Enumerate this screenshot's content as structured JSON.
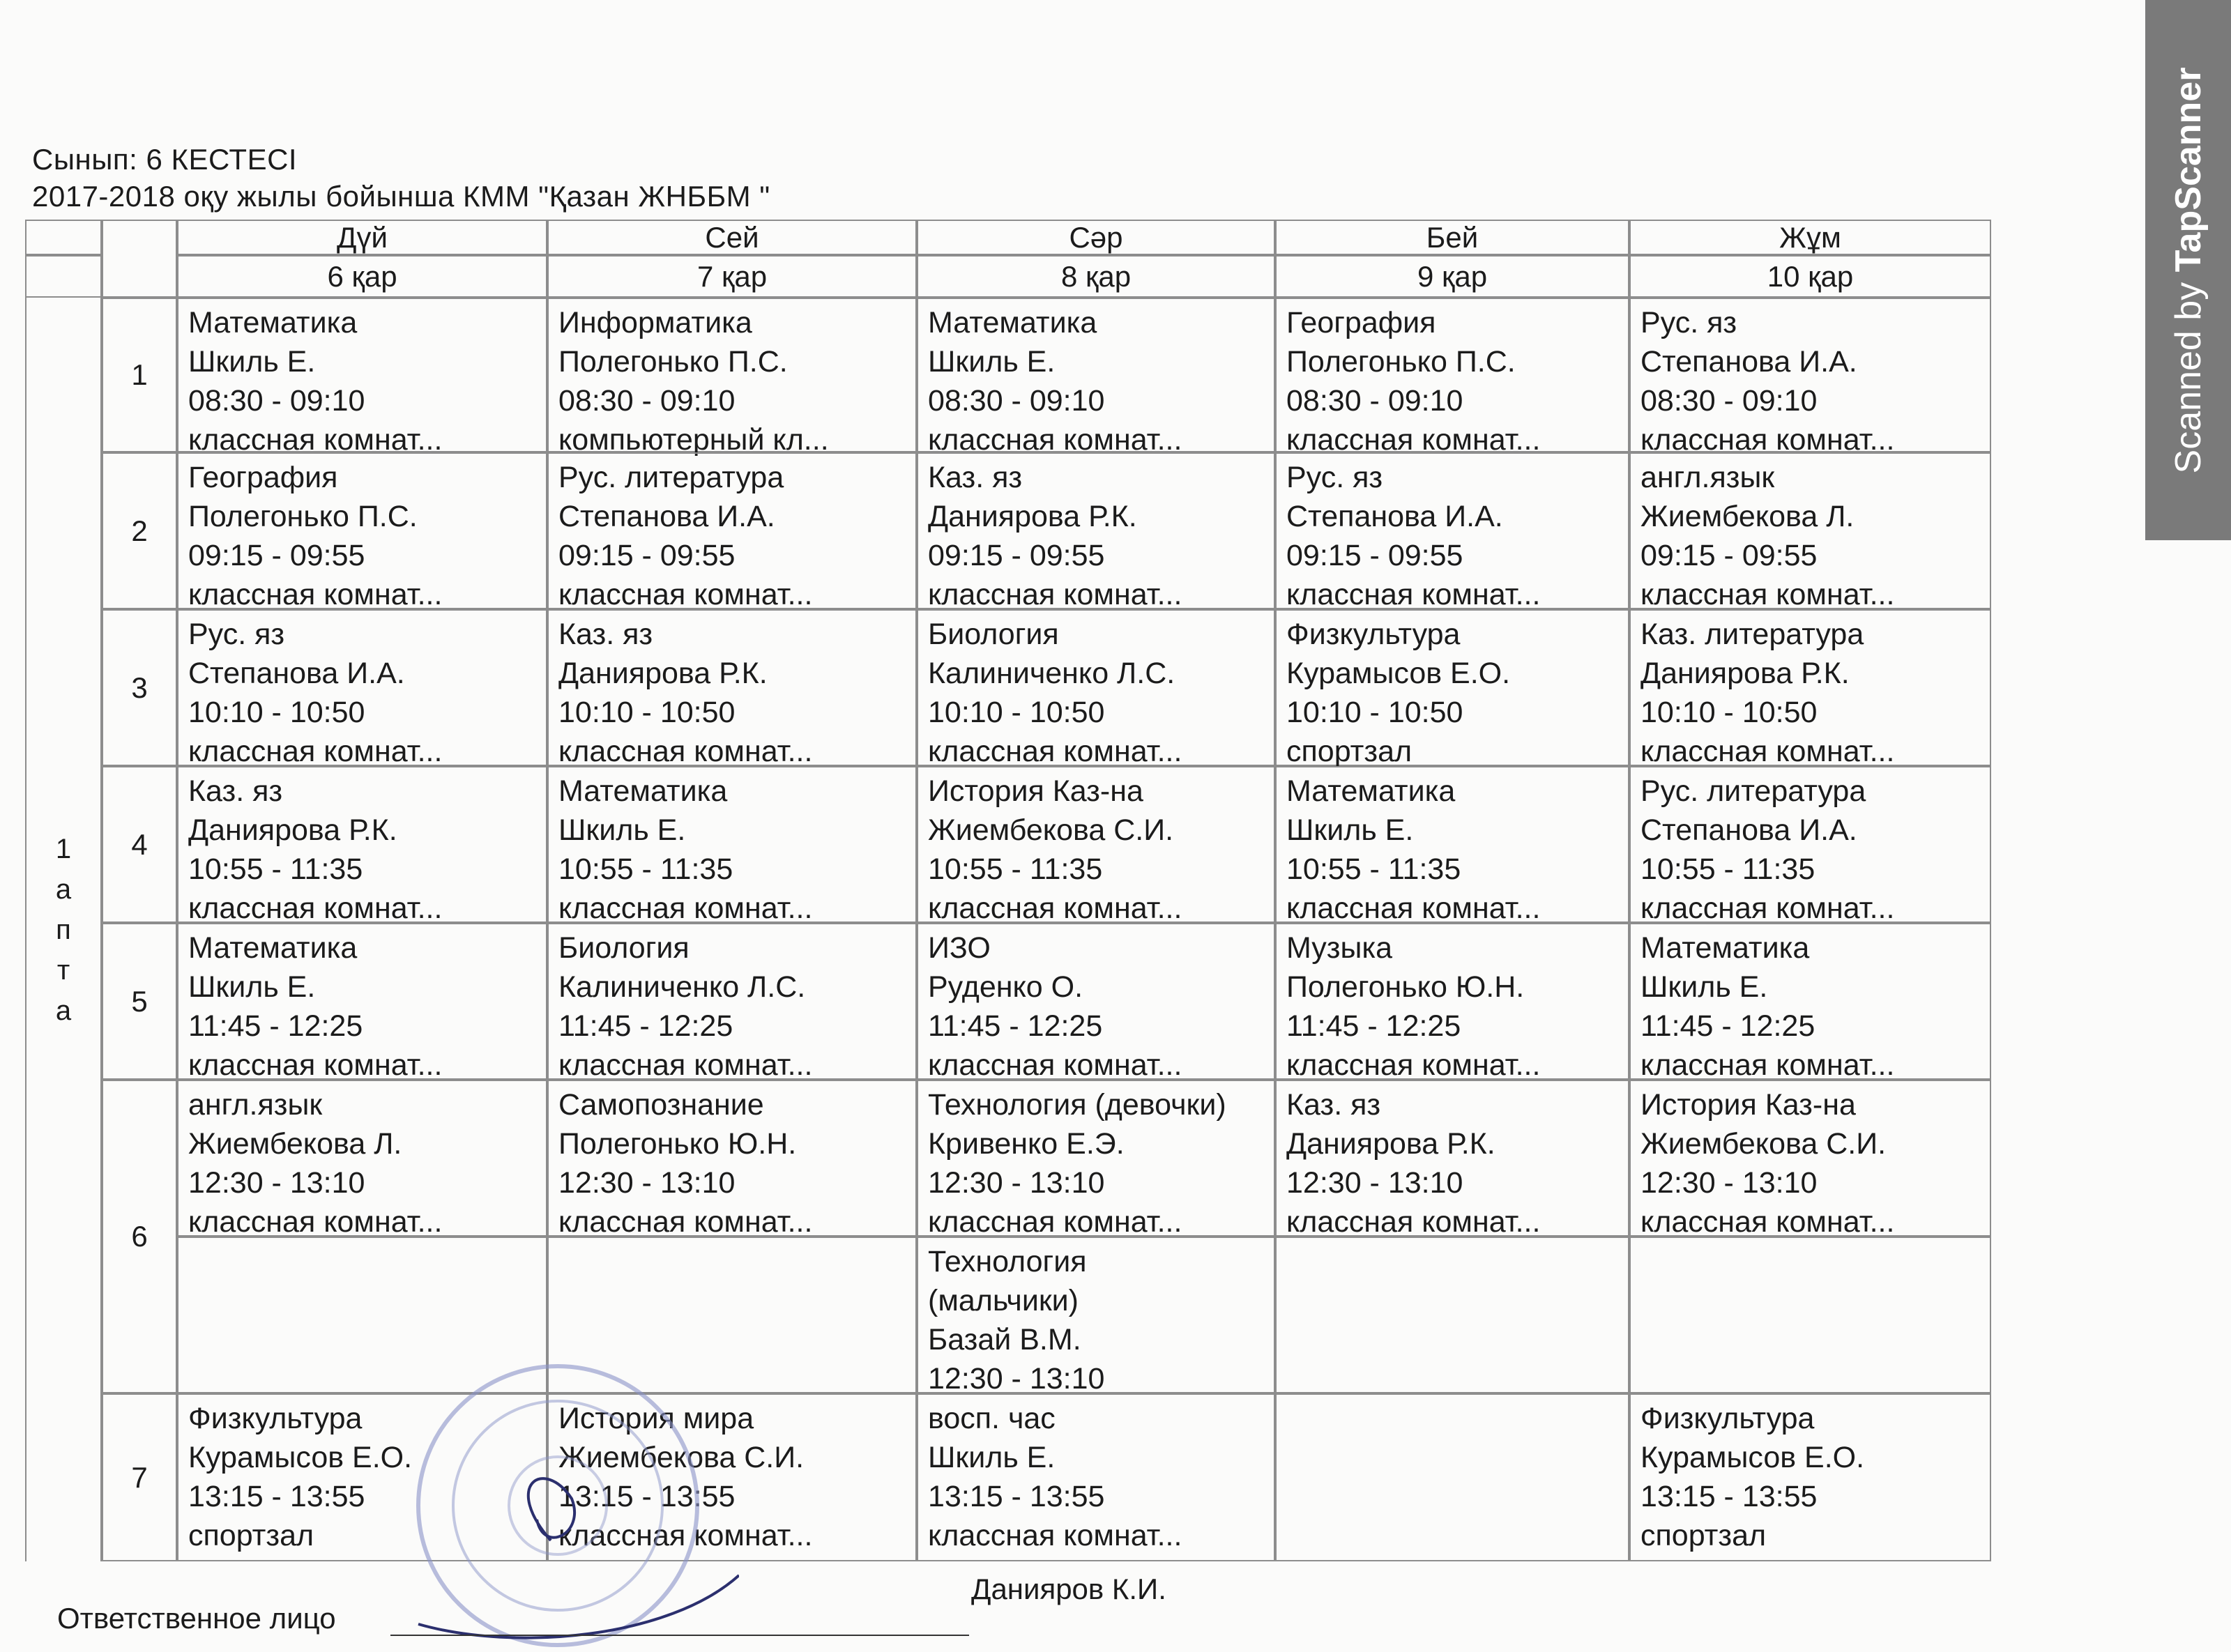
{
  "header": {
    "class_line": "Сынып: 6 КЕСТЕСІ",
    "school_line": "2017-2018 оқу жылы бойынша КММ \"Қазан ЖНББМ \""
  },
  "week_label": "1 апта",
  "week_letters": [
    "1",
    "а",
    "п",
    "т",
    "а"
  ],
  "lesson_numbers": [
    "1",
    "2",
    "3",
    "4",
    "5",
    "6",
    "7"
  ],
  "days": [
    {
      "name": "Дүй",
      "date": "6 қар",
      "lessons": [
        [
          [
            "Математика",
            "Шкиль Е.",
            "08:30 - 09:10",
            "классная комнат..."
          ]
        ],
        [
          [
            "География",
            "Полегонько П.С.",
            "09:15 - 09:55",
            "классная комнат..."
          ]
        ],
        [
          [
            "Рус. яз",
            "Степанова И.А.",
            "10:10 - 10:50",
            "классная комнат..."
          ]
        ],
        [
          [
            "Каз. яз",
            "Даниярова Р.К.",
            "10:55 - 11:35",
            "классная комнат..."
          ]
        ],
        [
          [
            "Математика",
            "Шкиль Е.",
            "11:45 - 12:25",
            "классная комнат..."
          ]
        ],
        [
          [
            "англ.язык",
            "Жиембекова Л.",
            "12:30 - 13:10",
            "классная комнат..."
          ]
        ],
        [
          [
            "Физкультура",
            "Курамысов Е.О.",
            "13:15 - 13:55",
            "спортзал"
          ]
        ]
      ]
    },
    {
      "name": "Сей",
      "date": "7 қар",
      "lessons": [
        [
          [
            "Информатика",
            "Полегонько П.С.",
            "08:30 - 09:10",
            "компьютерный кл..."
          ]
        ],
        [
          [
            "Рус. литература",
            "Степанова И.А.",
            "09:15 - 09:55",
            "классная комнат..."
          ]
        ],
        [
          [
            "Каз. яз",
            "Даниярова Р.К.",
            "10:10 - 10:50",
            "классная комнат..."
          ]
        ],
        [
          [
            "Математика",
            "Шкиль Е.",
            "10:55 - 11:35",
            "классная комнат..."
          ]
        ],
        [
          [
            "Биология",
            "Калиниченко Л.С.",
            "11:45 - 12:25",
            "классная комнат..."
          ]
        ],
        [
          [
            "Самопознание",
            "Полегонько Ю.Н.",
            "12:30 - 13:10",
            "классная комнат..."
          ]
        ],
        [
          [
            "История мира",
            "Жиембекова С.И.",
            "13:15 - 13:55",
            "классная комнат..."
          ]
        ]
      ]
    },
    {
      "name": "Сәр",
      "date": "8 қар",
      "lessons": [
        [
          [
            "Математика",
            "Шкиль Е.",
            "08:30 - 09:10",
            "классная комнат..."
          ]
        ],
        [
          [
            "Каз. яз",
            "Даниярова Р.К.",
            "09:15 - 09:55",
            "классная комнат..."
          ]
        ],
        [
          [
            "Биология",
            "Калиниченко Л.С.",
            "10:10 - 10:50",
            "классная комнат..."
          ]
        ],
        [
          [
            "История Каз-на",
            "Жиембекова С.И.",
            "10:55 - 11:35",
            "классная комнат..."
          ]
        ],
        [
          [
            "ИЗО",
            "Руденко О.",
            "11:45 - 12:25",
            "классная комнат..."
          ]
        ],
        [
          [
            "Технология (девочки)",
            "Кривенко Е.Э.",
            "12:30 - 13:10",
            "классная комнат..."
          ],
          [
            "Технология",
            "(мальчики)",
            "Базай В.М.",
            "12:30 - 13:10"
          ]
        ],
        [
          [
            "восп. час",
            "Шкиль Е.",
            "13:15 - 13:55",
            "классная комнат..."
          ]
        ]
      ]
    },
    {
      "name": "Бей",
      "date": "9 қар",
      "lessons": [
        [
          [
            "География",
            "Полегонько П.С.",
            "08:30 - 09:10",
            "классная комнат..."
          ]
        ],
        [
          [
            "Рус. яз",
            "Степанова И.А.",
            "09:15 - 09:55",
            "классная комнат..."
          ]
        ],
        [
          [
            "Физкультура",
            "Курамысов Е.О.",
            "10:10 - 10:50",
            "спортзал"
          ]
        ],
        [
          [
            "Математика",
            "Шкиль Е.",
            "10:55 - 11:35",
            "классная комнат..."
          ]
        ],
        [
          [
            "Музыка",
            "Полегонько Ю.Н.",
            "11:45 - 12:25",
            "классная комнат..."
          ]
        ],
        [
          [
            "Каз. яз",
            "Даниярова Р.К.",
            "12:30 - 13:10",
            "классная комнат..."
          ]
        ],
        []
      ]
    },
    {
      "name": "Жұм",
      "date": "10 қар",
      "lessons": [
        [
          [
            "Рус. яз",
            "Степанова И.А.",
            "08:30 - 09:10",
            "классная комнат..."
          ]
        ],
        [
          [
            "англ.язык",
            "Жиембекова Л.",
            "09:15 - 09:55",
            "классная комнат..."
          ]
        ],
        [
          [
            "Каз. литература",
            "Даниярова Р.К.",
            "10:10 - 10:50",
            "классная комнат..."
          ]
        ],
        [
          [
            "Рус. литература",
            "Степанова И.А.",
            "10:55 - 11:35",
            "классная комнат..."
          ]
        ],
        [
          [
            "Математика",
            "Шкиль Е.",
            "11:45 - 12:25",
            "классная комнат..."
          ]
        ],
        [
          [
            "История Каз-на",
            "Жиембекова С.И.",
            "12:30 - 13:10",
            "классная комнат..."
          ]
        ],
        [
          [
            "Физкультура",
            "Курамысов Е.О.",
            "13:15 - 13:55",
            "спортзал"
          ]
        ]
      ]
    }
  ],
  "footer": {
    "responsible_label": "Ответственное лицо",
    "signer": "Данияров К.И."
  },
  "watermark": {
    "prefix": "Scanned by ",
    "brand": "TapScanner",
    "background": "#7a7a7a"
  }
}
